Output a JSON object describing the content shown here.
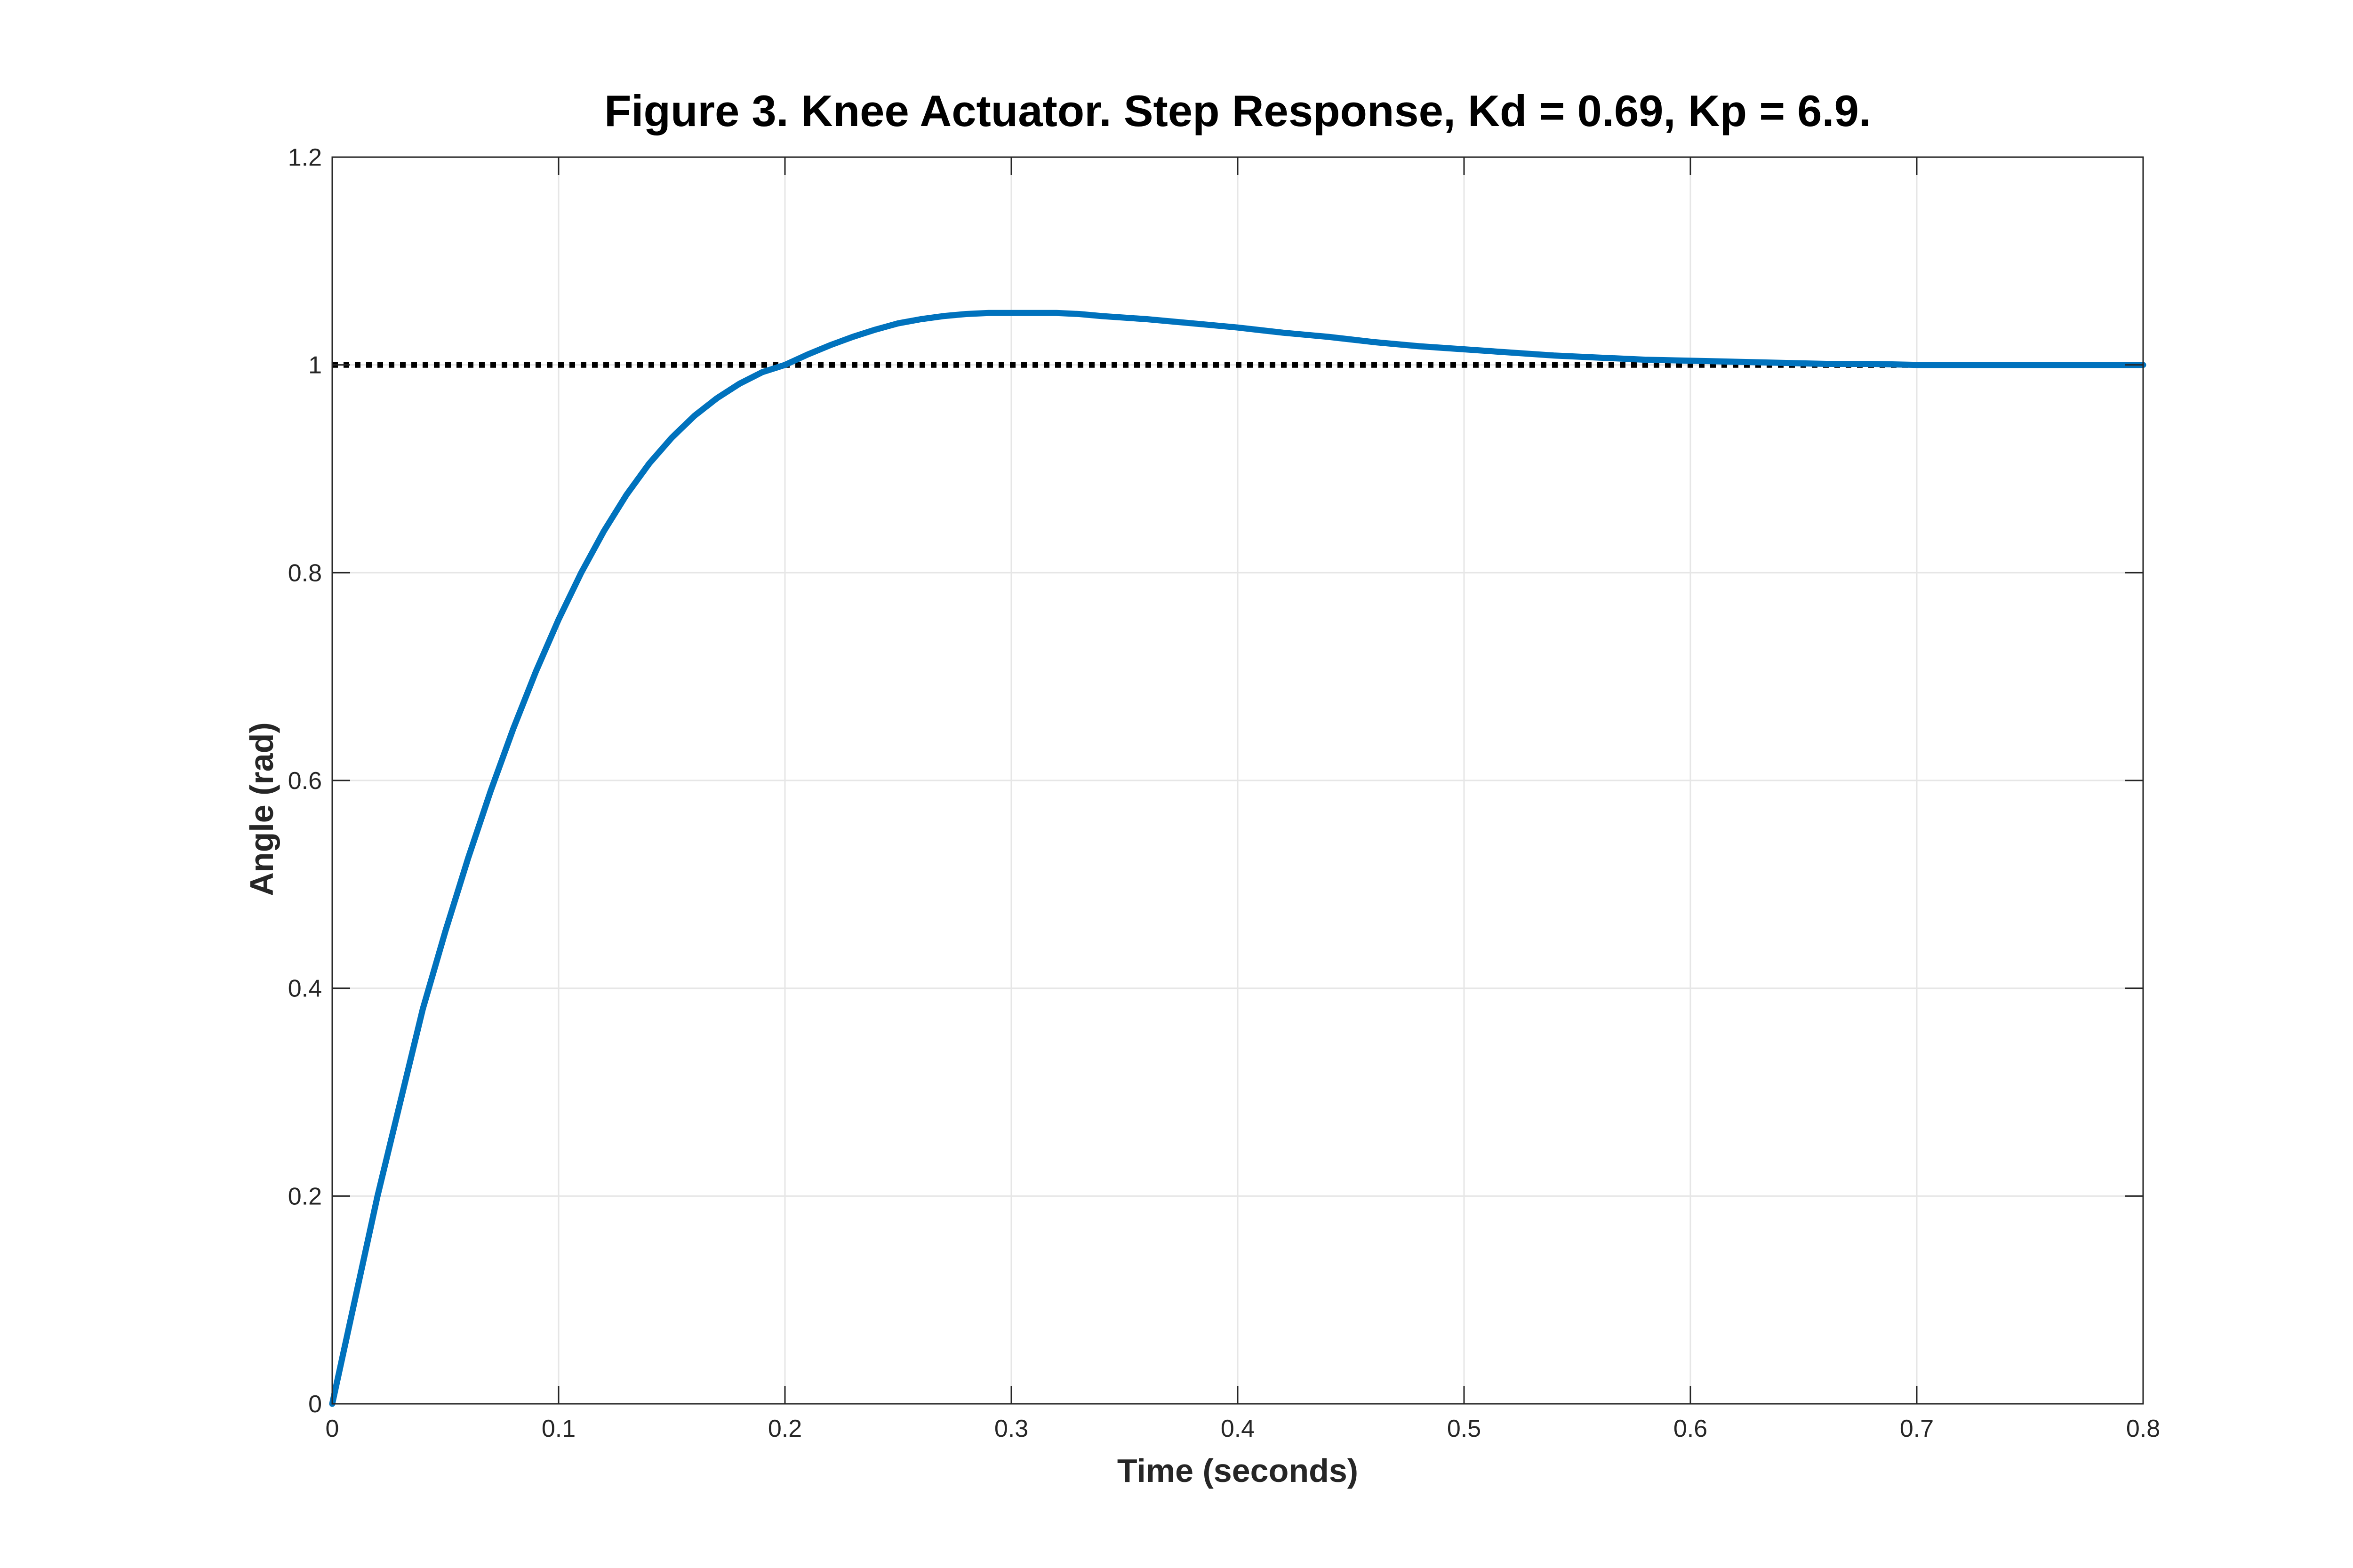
{
  "chart_data": {
    "type": "line",
    "title": "Figure 3. Knee Actuator. Step Response, Kd = 0.69, Kp = 6.9.",
    "xlabel": "Time (seconds)",
    "ylabel": "Angle (rad)",
    "xlim": [
      0,
      0.8
    ],
    "ylim": [
      0,
      1.2
    ],
    "xticks": [
      0,
      0.1,
      0.2,
      0.3,
      0.4,
      0.5,
      0.6,
      0.7,
      0.8
    ],
    "xtick_labels": [
      "0",
      "0.1",
      "0.2",
      "0.3",
      "0.4",
      "0.5",
      "0.6",
      "0.7",
      "0.8"
    ],
    "yticks": [
      0,
      0.2,
      0.4,
      0.6,
      0.8,
      1,
      1.2
    ],
    "ytick_labels": [
      "0",
      "0.2",
      "0.4",
      "0.6",
      "0.8",
      "1",
      "1.2"
    ],
    "grid": true,
    "series": [
      {
        "color": "#0072BD",
        "style": "solid",
        "x": [
          0,
          0.01,
          0.02,
          0.03,
          0.04,
          0.05,
          0.06,
          0.07,
          0.08,
          0.09,
          0.1,
          0.11,
          0.12,
          0.13,
          0.14,
          0.15,
          0.16,
          0.17,
          0.18,
          0.19,
          0.2,
          0.21,
          0.22,
          0.23,
          0.24,
          0.25,
          0.26,
          0.27,
          0.28,
          0.29,
          0.3,
          0.31,
          0.32,
          0.33,
          0.34,
          0.36,
          0.38,
          0.4,
          0.42,
          0.44,
          0.46,
          0.48,
          0.5,
          0.52,
          0.54,
          0.56,
          0.58,
          0.6,
          0.62,
          0.64,
          0.66,
          0.68,
          0.7,
          0.72,
          0.74,
          0.76,
          0.78,
          0.8
        ],
        "y": [
          0,
          0.1,
          0.2,
          0.29,
          0.38,
          0.455,
          0.525,
          0.59,
          0.65,
          0.705,
          0.755,
          0.8,
          0.84,
          0.875,
          0.905,
          0.93,
          0.951,
          0.968,
          0.982,
          0.993,
          1.0,
          1.01,
          1.019,
          1.027,
          1.034,
          1.04,
          1.044,
          1.047,
          1.049,
          1.05,
          1.05,
          1.05,
          1.05,
          1.049,
          1.047,
          1.044,
          1.04,
          1.036,
          1.031,
          1.027,
          1.022,
          1.018,
          1.015,
          1.012,
          1.009,
          1.007,
          1.005,
          1.004,
          1.003,
          1.002,
          1.001,
          1.001,
          1.0,
          1.0,
          1.0,
          1.0,
          1.0,
          1.0
        ]
      },
      {
        "color": "#000000",
        "style": "dotted",
        "x": [
          0,
          0.8
        ],
        "y": [
          1,
          1
        ]
      }
    ]
  }
}
